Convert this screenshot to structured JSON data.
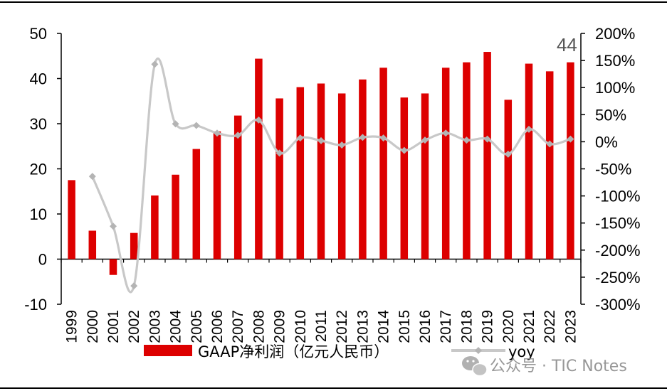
{
  "chart_data": {
    "type": "bar",
    "categories": [
      "1999",
      "2000",
      "2001",
      "2002",
      "2003",
      "2004",
      "2005",
      "2006",
      "2007",
      "2008",
      "2009",
      "2010",
      "2011",
      "2012",
      "2013",
      "2014",
      "2015",
      "2016",
      "2017",
      "2018",
      "2019",
      "2020",
      "2021",
      "2022",
      "2023"
    ],
    "series": [
      {
        "name": "GAAP净利润（亿元人民币）",
        "type": "bar",
        "axis": "left",
        "color": "#dd0000",
        "values": [
          17.5,
          6.3,
          -3.5,
          5.8,
          14.1,
          18.7,
          24.4,
          28.3,
          31.8,
          44.4,
          35.6,
          38.1,
          38.9,
          36.7,
          39.8,
          42.4,
          35.8,
          36.7,
          42.4,
          43.6,
          45.9,
          35.3,
          43.3,
          41.6,
          43.6
        ]
      },
      {
        "name": "yoy",
        "type": "line",
        "axis": "right",
        "unit": "%",
        "color": "#c8c8c8",
        "values": [
          null,
          -64,
          -156,
          -266,
          143,
          33,
          30,
          16,
          12,
          40,
          -21,
          7,
          2,
          -6,
          8,
          7,
          -16,
          3,
          16,
          3,
          5,
          -23,
          23,
          -4,
          5
        ]
      }
    ],
    "yleft": {
      "lim": [
        -10,
        50
      ],
      "ticks": [
        "50",
        "40",
        "30",
        "20",
        "10",
        "0",
        "-10"
      ]
    },
    "yright": {
      "lim": [
        -300,
        200
      ],
      "ticks": [
        "200%",
        "150%",
        "100%",
        "50%",
        "0%",
        "-50%",
        "-100%",
        "-150%",
        "-200%",
        "-250%",
        "-300%"
      ]
    },
    "annotation": {
      "text": "44",
      "anchor_category": "2023"
    },
    "legend": {
      "position": "bottom"
    },
    "grid": false,
    "title": "",
    "xlabel": "",
    "ylabel": ""
  },
  "watermark": {
    "text": "公众号 · TIC Notes",
    "icon": "wechat-icon"
  }
}
